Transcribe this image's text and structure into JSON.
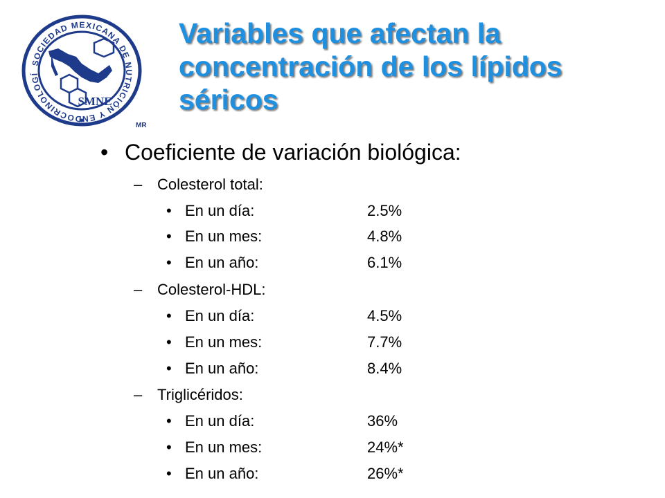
{
  "logo": {
    "ring_text": "SOCIEDAD MEXICANA DE NUTRICIÓN Y ENDOCRINOLOGÍA",
    "acronym": "SMNE",
    "mark": "MR",
    "color": "#1e3a8a"
  },
  "title": {
    "lines": [
      "Variables que afectan la",
      "concentración de los lípidos",
      "séricos"
    ]
  },
  "colors": {
    "title": "#1f8fe0",
    "logo": "#1e3a8a",
    "text": "#000000"
  },
  "main_bullet": {
    "marker": "•",
    "text": "Coeficiente de variación biológica:"
  },
  "sections": [
    {
      "marker": "–",
      "label": "Colesterol total:",
      "items": [
        {
          "marker": "•",
          "label": "En un día:",
          "value": "2.5%"
        },
        {
          "marker": "•",
          "label": "En un mes:",
          "value": "4.8%"
        },
        {
          "marker": "•",
          "label": "En un año:",
          "value": "6.1%"
        }
      ]
    },
    {
      "marker": "–",
      "label": "Colesterol-HDL:",
      "items": [
        {
          "marker": "•",
          "label": "En un día:",
          "value": "4.5%"
        },
        {
          "marker": "•",
          "label": "En un mes:",
          "value": "7.7%"
        },
        {
          "marker": "•",
          "label": "En un año:",
          "value": "8.4%"
        }
      ]
    },
    {
      "marker": "–",
      "label": "Triglicéridos:",
      "items": [
        {
          "marker": "•",
          "label": "En un día:",
          "value": "36%"
        },
        {
          "marker": "•",
          "label": "En un mes:",
          "value": "24%*"
        },
        {
          "marker": "•",
          "label": "En un año:",
          "value": "26%*"
        }
      ]
    }
  ]
}
